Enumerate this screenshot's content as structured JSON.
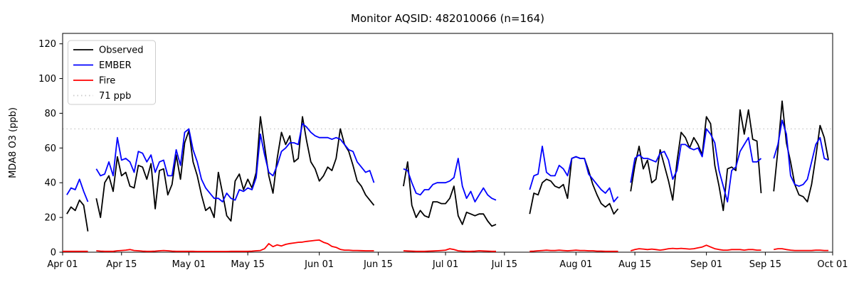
{
  "chart_data": {
    "type": "line",
    "title": "Monitor AQSID: 482010066 (n=164)",
    "xlabel": "",
    "ylabel": "MDA8 O3 (ppb)",
    "ylim": [
      0,
      126
    ],
    "yticks": [
      0,
      20,
      40,
      60,
      80,
      100,
      120
    ],
    "grid": false,
    "legend_position": "upper left",
    "x_axis": {
      "start": "Apr 01",
      "end": "Oct 01",
      "total_days": 183,
      "unit": "day"
    },
    "xticks": [
      {
        "label": "Apr 01",
        "day": 0
      },
      {
        "label": "Apr 15",
        "day": 14
      },
      {
        "label": "May 01",
        "day": 30
      },
      {
        "label": "May 15",
        "day": 44
      },
      {
        "label": "Jun 01",
        "day": 61
      },
      {
        "label": "Jun 15",
        "day": 75
      },
      {
        "label": "Jul 01",
        "day": 91
      },
      {
        "label": "Jul 15",
        "day": 105
      },
      {
        "label": "Aug 01",
        "day": 122
      },
      {
        "label": "Aug 15",
        "day": 136
      },
      {
        "label": "Sep 01",
        "day": 153
      },
      {
        "label": "Sep 15",
        "day": 167
      },
      {
        "label": "Oct 01",
        "day": 183
      }
    ],
    "ref_line": {
      "label": "71 ppb",
      "value": 71,
      "color": "#c9c9c9",
      "style": "dotted"
    },
    "dates": [
      "04-01",
      "04-02",
      "04-03",
      "04-04",
      "04-05",
      "04-06",
      "04-07",
      "04-08",
      "04-09",
      "04-10",
      "04-11",
      "04-12",
      "04-13",
      "04-14",
      "04-15",
      "04-16",
      "04-17",
      "04-18",
      "04-19",
      "04-20",
      "04-21",
      "04-22",
      "04-23",
      "04-24",
      "04-25",
      "04-26",
      "04-27",
      "04-28",
      "04-29",
      "04-30",
      "05-01",
      "05-02",
      "05-03",
      "05-04",
      "05-05",
      "05-06",
      "05-07",
      "05-08",
      "05-09",
      "05-10",
      "05-11",
      "05-12",
      "05-13",
      "05-14",
      "05-15",
      "05-16",
      "05-17",
      "05-18",
      "05-19",
      "05-20",
      "05-21",
      "05-22",
      "05-23",
      "05-24",
      "05-25",
      "05-26",
      "05-27",
      "05-28",
      "05-29",
      "05-30",
      "05-31",
      "06-01",
      "06-02",
      "06-03",
      "06-04",
      "06-05",
      "06-06",
      "06-07",
      "06-08",
      "06-09",
      "06-10",
      "06-11",
      "06-12",
      "06-13",
      "06-14",
      "06-15",
      "06-16",
      "06-17",
      "06-18",
      "06-19",
      "06-20",
      "06-21",
      "06-22",
      "06-23",
      "06-24",
      "06-25",
      "06-26",
      "06-27",
      "06-28",
      "06-29",
      "06-30",
      "07-01",
      "07-02",
      "07-03",
      "07-04",
      "07-05",
      "07-06",
      "07-07",
      "07-08",
      "07-09",
      "07-10",
      "07-11",
      "07-12",
      "07-13",
      "07-14",
      "07-15",
      "07-16",
      "07-17",
      "07-18",
      "07-19",
      "07-20",
      "07-21",
      "07-22",
      "07-23",
      "07-24",
      "07-25",
      "07-26",
      "07-27",
      "07-28",
      "07-29",
      "07-30",
      "07-31",
      "08-01",
      "08-02",
      "08-03",
      "08-04",
      "08-05",
      "08-06",
      "08-07",
      "08-08",
      "08-09",
      "08-10",
      "08-11",
      "08-12",
      "08-13",
      "08-14",
      "08-15",
      "08-16",
      "08-17",
      "08-18",
      "08-19",
      "08-20",
      "08-21",
      "08-22",
      "08-23",
      "08-24",
      "08-25",
      "08-26",
      "08-27",
      "08-28",
      "08-29",
      "08-30",
      "08-31",
      "09-01",
      "09-02",
      "09-03",
      "09-04",
      "09-05",
      "09-06",
      "09-07",
      "09-08",
      "09-09",
      "09-10",
      "09-11",
      "09-12",
      "09-13",
      "09-14",
      "09-15",
      "09-16",
      "09-17",
      "09-18",
      "09-19",
      "09-20",
      "09-21",
      "09-22",
      "09-23",
      "09-24",
      "09-25",
      "09-26",
      "09-27",
      "09-28",
      "09-29",
      "09-30"
    ],
    "series": [
      {
        "name": "Observed",
        "color": "#000000",
        "values": [
          null,
          22,
          26,
          24,
          30,
          27,
          12,
          null,
          31,
          20,
          40,
          44,
          35,
          55,
          44,
          46,
          38,
          37,
          50,
          49,
          42,
          51,
          25,
          47,
          48,
          33,
          39,
          56,
          42,
          63,
          70,
          52,
          44,
          33,
          24,
          26,
          20,
          46,
          34,
          21,
          18,
          41,
          45,
          36,
          42,
          37,
          46,
          78,
          61,
          44,
          34,
          54,
          69,
          62,
          67,
          52,
          54,
          78,
          64,
          52,
          48,
          41,
          44,
          49,
          47,
          54,
          71,
          62,
          58,
          50,
          41,
          38,
          33,
          30,
          27,
          null,
          null,
          null,
          null,
          null,
          null,
          38,
          52,
          27,
          20,
          24,
          21,
          20,
          29,
          29,
          28,
          28,
          31,
          38,
          21,
          16,
          23,
          22,
          21,
          22,
          22,
          18,
          15,
          16,
          null,
          null,
          null,
          null,
          null,
          null,
          null,
          22,
          34,
          33,
          40,
          42,
          41,
          38,
          37,
          39,
          31,
          54,
          55,
          54,
          54,
          47,
          39,
          33,
          28,
          26,
          28,
          22,
          25,
          null,
          null,
          35,
          50,
          61,
          48,
          53,
          40,
          42,
          59,
          50,
          41,
          30,
          52,
          69,
          66,
          60,
          66,
          62,
          56,
          78,
          74,
          50,
          38,
          24,
          48,
          49,
          47,
          82,
          68,
          82,
          65,
          64,
          34,
          null,
          null,
          35,
          59,
          87,
          63,
          52,
          39,
          33,
          32,
          29,
          39,
          55,
          73,
          66,
          53
        ]
      },
      {
        "name": "EMBER",
        "color": "#0000ff",
        "values": [
          null,
          33,
          37,
          36,
          42,
          35,
          29,
          null,
          48,
          44,
          45,
          52,
          44,
          66,
          53,
          54,
          52,
          46,
          58,
          57,
          52,
          56,
          46,
          52,
          53,
          44,
          44,
          59,
          50,
          69,
          71,
          59,
          52,
          42,
          37,
          34,
          31,
          31,
          29,
          34,
          31,
          30,
          36,
          35,
          37,
          36,
          43,
          68,
          56,
          46,
          44,
          50,
          58,
          60,
          63,
          63,
          62,
          74,
          72,
          69,
          67,
          66,
          66,
          66,
          65,
          66,
          65,
          62,
          59,
          58,
          52,
          49,
          46,
          47,
          40,
          null,
          null,
          null,
          null,
          null,
          null,
          48,
          47,
          40,
          34,
          33,
          36,
          36,
          39,
          40,
          40,
          40,
          41,
          43,
          54,
          38,
          31,
          35,
          29,
          33,
          37,
          33,
          31,
          30,
          null,
          null,
          null,
          null,
          null,
          null,
          null,
          36,
          44,
          45,
          61,
          46,
          44,
          44,
          50,
          48,
          44,
          54,
          55,
          54,
          54,
          45,
          42,
          39,
          36,
          34,
          37,
          29,
          32,
          null,
          null,
          40,
          54,
          56,
          54,
          54,
          53,
          52,
          57,
          58,
          53,
          42,
          47,
          62,
          62,
          60,
          59,
          60,
          55,
          71,
          68,
          63,
          47,
          38,
          29,
          47,
          49,
          58,
          62,
          66,
          52,
          52,
          54,
          null,
          null,
          54,
          62,
          76,
          68,
          44,
          39,
          38,
          39,
          42,
          52,
          62,
          66,
          54,
          53
        ]
      },
      {
        "name": "Fire",
        "color": "#ff0000",
        "values": [
          0.5,
          0.5,
          0.5,
          0.5,
          0.5,
          0.5,
          0.5,
          null,
          0.8,
          0.6,
          0.5,
          0.5,
          0.5,
          0.8,
          1.0,
          1.2,
          1.5,
          1.0,
          0.8,
          0.6,
          0.5,
          0.5,
          0.6,
          0.8,
          1.0,
          0.8,
          0.6,
          0.5,
          0.5,
          0.5,
          0.5,
          0.5,
          0.4,
          0.4,
          0.4,
          0.4,
          0.4,
          0.4,
          0.4,
          0.4,
          0.5,
          0.5,
          0.5,
          0.5,
          0.5,
          0.6,
          0.8,
          1.0,
          2.0,
          4.9,
          3.2,
          4.2,
          3.6,
          4.5,
          5.0,
          5.3,
          5.7,
          5.8,
          6.2,
          6.5,
          6.8,
          7.0,
          5.7,
          4.9,
          3.3,
          2.8,
          1.6,
          1.2,
          1.2,
          1.0,
          1.0,
          0.9,
          0.8,
          0.8,
          0.8,
          null,
          null,
          null,
          null,
          null,
          null,
          0.8,
          0.7,
          0.6,
          0.5,
          0.5,
          0.5,
          0.6,
          0.7,
          0.8,
          1.0,
          1.2,
          2.0,
          1.5,
          0.8,
          0.6,
          0.5,
          0.5,
          0.6,
          0.8,
          0.7,
          0.6,
          0.5,
          0.5,
          null,
          null,
          null,
          null,
          null,
          null,
          null,
          0.5,
          0.6,
          0.8,
          1.0,
          1.2,
          1.0,
          1.0,
          1.2,
          1.0,
          0.8,
          1.0,
          1.2,
          1.0,
          1.0,
          0.8,
          0.8,
          0.6,
          0.6,
          0.5,
          0.5,
          0.5,
          0.5,
          null,
          null,
          0.8,
          1.5,
          2.0,
          1.8,
          1.5,
          1.8,
          1.5,
          1.2,
          1.5,
          2.0,
          2.2,
          2.0,
          2.2,
          2.0,
          1.8,
          2.0,
          2.5,
          3.0,
          4.0,
          3.0,
          2.0,
          1.5,
          1.2,
          1.2,
          1.5,
          1.5,
          1.5,
          1.2,
          1.5,
          1.5,
          1.2,
          1.2,
          null,
          null,
          1.5,
          2.0,
          2.0,
          1.5,
          1.2,
          1.0,
          1.0,
          1.0,
          1.0,
          1.0,
          1.2,
          1.2,
          1.0,
          1.0
        ]
      }
    ]
  }
}
